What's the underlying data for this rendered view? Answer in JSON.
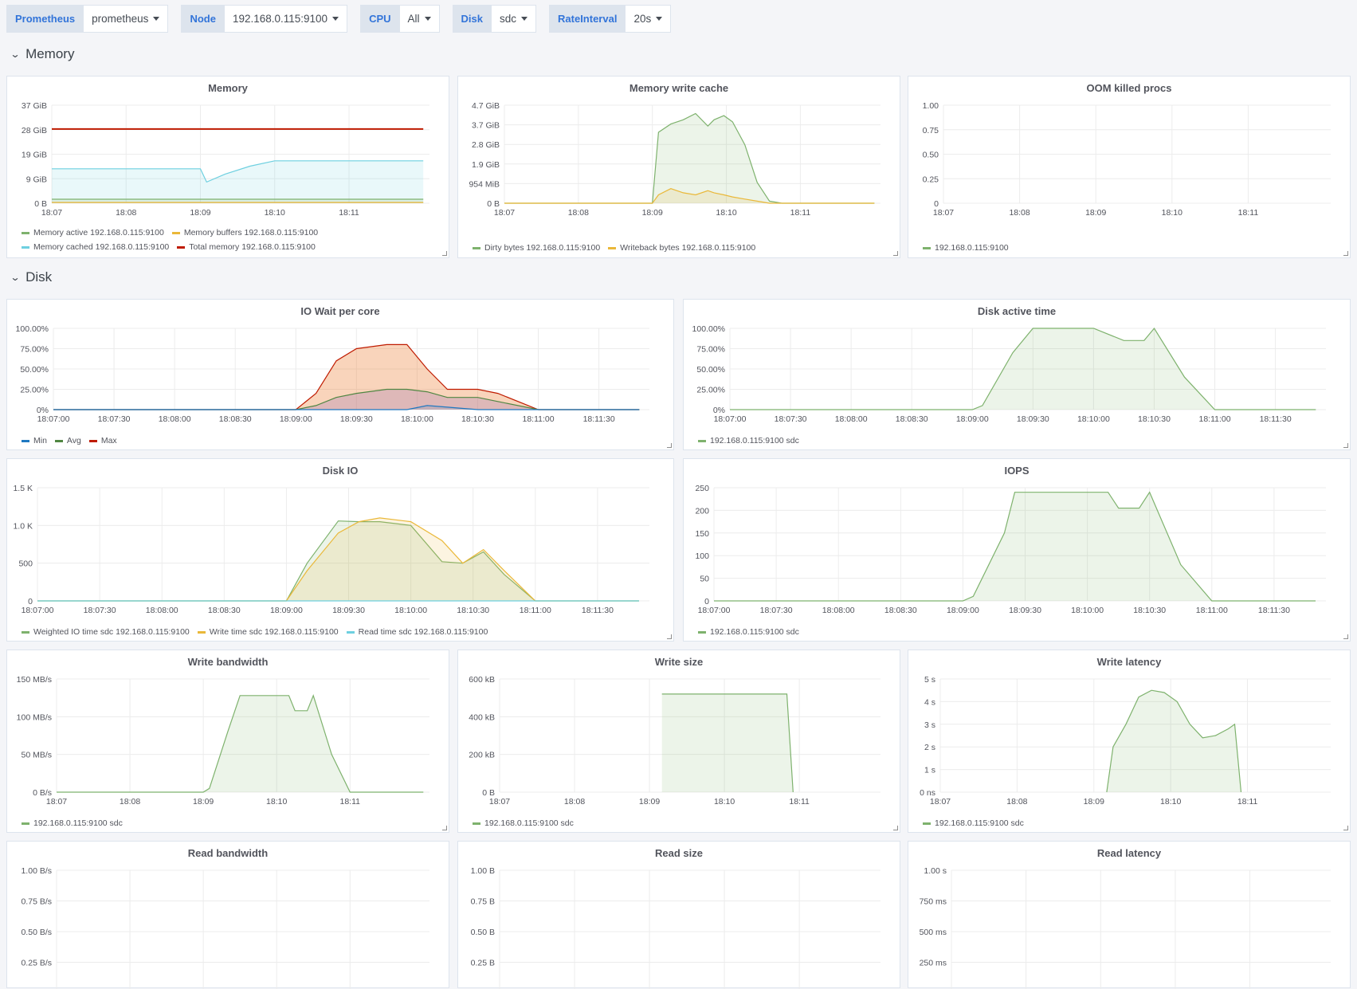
{
  "variables": [
    {
      "label": "Prometheus",
      "value": "prometheus"
    },
    {
      "label": "Node",
      "value": "192.168.0.115:9100"
    },
    {
      "label": "CPU",
      "value": "All"
    },
    {
      "label": "Disk",
      "value": "sdc"
    },
    {
      "label": "RateInterval",
      "value": "20s"
    }
  ],
  "rows": {
    "memory": "Memory",
    "disk": "Disk"
  },
  "panels": {
    "memory": {
      "title": "Memory",
      "yticks": [
        "37 GiB",
        "28 GiB",
        "19 GiB",
        "9 GiB",
        "0 B"
      ],
      "xticks": [
        "18:07",
        "18:08",
        "18:09",
        "18:10",
        "18:11"
      ],
      "legend": [
        [
          {
            "name": "Memory active 192.168.0.115:9100",
            "color": "#7eb26d"
          },
          {
            "name": "Memory buffers 192.168.0.115:9100",
            "color": "#eab839"
          }
        ],
        [
          {
            "name": "Memory cached 192.168.0.115:9100",
            "color": "#6ed0e0"
          },
          {
            "name": "Total memory 192.168.0.115:9100",
            "color": "#bf1b00"
          }
        ]
      ]
    },
    "memory_write_cache": {
      "title": "Memory write cache",
      "yticks": [
        "4.7 GiB",
        "3.7 GiB",
        "2.8 GiB",
        "1.9 GiB",
        "954 MiB",
        "0 B"
      ],
      "xticks": [
        "18:07",
        "18:08",
        "18:09",
        "18:10",
        "18:11"
      ],
      "legend": [
        [
          {
            "name": "Dirty bytes 192.168.0.115:9100",
            "color": "#7eb26d"
          },
          {
            "name": "Writeback bytes 192.168.0.115:9100",
            "color": "#eab839"
          }
        ]
      ]
    },
    "oom": {
      "title": "OOM killed procs",
      "yticks": [
        "1.00",
        "0.75",
        "0.50",
        "0.25",
        "0"
      ],
      "xticks": [
        "18:07",
        "18:08",
        "18:09",
        "18:10",
        "18:11"
      ],
      "legend": [
        [
          {
            "name": "192.168.0.115:9100",
            "color": "#7eb26d"
          }
        ]
      ]
    },
    "io_wait": {
      "title": "IO Wait per core",
      "yticks": [
        "100.00%",
        "75.00%",
        "50.00%",
        "25.00%",
        "0%"
      ],
      "xticks": [
        "18:07:00",
        "18:07:30",
        "18:08:00",
        "18:08:30",
        "18:09:00",
        "18:09:30",
        "18:10:00",
        "18:10:30",
        "18:11:00",
        "18:11:30"
      ],
      "legend": [
        [
          {
            "name": "Min",
            "color": "#1f78c1"
          },
          {
            "name": "Avg",
            "color": "#508642"
          },
          {
            "name": "Max",
            "color": "#bf1b00"
          }
        ]
      ]
    },
    "disk_active": {
      "title": "Disk active time",
      "yticks": [
        "100.00%",
        "75.00%",
        "50.00%",
        "25.00%",
        "0%"
      ],
      "xticks": [
        "18:07:00",
        "18:07:30",
        "18:08:00",
        "18:08:30",
        "18:09:00",
        "18:09:30",
        "18:10:00",
        "18:10:30",
        "18:11:00",
        "18:11:30"
      ],
      "legend": [
        [
          {
            "name": "192.168.0.115:9100 sdc",
            "color": "#7eb26d"
          }
        ]
      ]
    },
    "disk_io": {
      "title": "Disk IO",
      "yticks": [
        "1.5 K",
        "1.0 K",
        "500",
        "0"
      ],
      "xticks": [
        "18:07:00",
        "18:07:30",
        "18:08:00",
        "18:08:30",
        "18:09:00",
        "18:09:30",
        "18:10:00",
        "18:10:30",
        "18:11:00",
        "18:11:30"
      ],
      "legend": [
        [
          {
            "name": "Weighted IO time sdc 192.168.0.115:9100",
            "color": "#7eb26d"
          },
          {
            "name": "Write time sdc 192.168.0.115:9100",
            "color": "#eab839"
          },
          {
            "name": "Read time sdc 192.168.0.115:9100",
            "color": "#6ed0e0"
          }
        ]
      ]
    },
    "iops": {
      "title": "IOPS",
      "yticks": [
        "250",
        "200",
        "150",
        "100",
        "50",
        "0"
      ],
      "xticks": [
        "18:07:00",
        "18:07:30",
        "18:08:00",
        "18:08:30",
        "18:09:00",
        "18:09:30",
        "18:10:00",
        "18:10:30",
        "18:11:00",
        "18:11:30"
      ],
      "legend": [
        [
          {
            "name": "192.168.0.115:9100 sdc",
            "color": "#7eb26d"
          }
        ]
      ]
    },
    "write_bw": {
      "title": "Write bandwidth",
      "yticks": [
        "150 MB/s",
        "100 MB/s",
        "50 MB/s",
        "0 B/s"
      ],
      "xticks": [
        "18:07",
        "18:08",
        "18:09",
        "18:10",
        "18:11"
      ],
      "legend": [
        [
          {
            "name": "192.168.0.115:9100 sdc",
            "color": "#7eb26d"
          }
        ]
      ]
    },
    "write_size": {
      "title": "Write size",
      "yticks": [
        "600 kB",
        "400 kB",
        "200 kB",
        "0 B"
      ],
      "xticks": [
        "18:07",
        "18:08",
        "18:09",
        "18:10",
        "18:11"
      ],
      "legend": [
        [
          {
            "name": "192.168.0.115:9100 sdc",
            "color": "#7eb26d"
          }
        ]
      ]
    },
    "write_latency": {
      "title": "Write latency",
      "yticks": [
        "5 s",
        "4 s",
        "3 s",
        "2 s",
        "1 s",
        "0 ns"
      ],
      "xticks": [
        "18:07",
        "18:08",
        "18:09",
        "18:10",
        "18:11"
      ],
      "legend": [
        [
          {
            "name": "192.168.0.115:9100 sdc",
            "color": "#7eb26d"
          }
        ]
      ]
    },
    "read_bw": {
      "title": "Read bandwidth",
      "yticks": [
        "1.00 B/s",
        "0.75 B/s",
        "0.50 B/s",
        "0.25 B/s"
      ],
      "xticks": [],
      "legend": []
    },
    "read_size": {
      "title": "Read size",
      "yticks": [
        "1.00 B",
        "0.75 B",
        "0.50 B",
        "0.25 B"
      ],
      "xticks": [],
      "legend": []
    },
    "read_latency": {
      "title": "Read latency",
      "yticks": [
        "1.00 s",
        "750 ms",
        "500 ms",
        "250 ms"
      ],
      "xticks": [],
      "legend": []
    }
  },
  "chart_data": [
    {
      "panel": "memory",
      "type": "area",
      "title": "Memory",
      "x": [
        "18:07:00",
        "18:09:00",
        "18:09:05",
        "18:09:20",
        "18:09:40",
        "18:10:00",
        "18:10:30",
        "18:11:00",
        "18:12:00"
      ],
      "series": [
        {
          "name": "Total memory 192.168.0.115:9100",
          "values": [
            28,
            28,
            28,
            28,
            28,
            28,
            28,
            28,
            28
          ]
        },
        {
          "name": "Memory cached 192.168.0.115:9100",
          "values": [
            13,
            13,
            8,
            11,
            14,
            16,
            16,
            16,
            16
          ]
        },
        {
          "name": "Memory active 192.168.0.115:9100",
          "values": [
            1.5,
            1.5,
            1.5,
            1.5,
            1.5,
            1.5,
            1.5,
            1.5,
            1.5
          ]
        },
        {
          "name": "Memory buffers 192.168.0.115:9100",
          "values": [
            0.3,
            0.3,
            0.3,
            0.3,
            0.3,
            0.3,
            0.3,
            0.3,
            0.3
          ]
        }
      ],
      "ylim": [
        0,
        37
      ]
    },
    {
      "panel": "memory_write_cache",
      "type": "area",
      "title": "Memory write cache",
      "x": [
        "18:07:00",
        "18:09:00",
        "18:09:05",
        "18:09:15",
        "18:09:25",
        "18:09:35",
        "18:09:45",
        "18:09:50",
        "18:09:58",
        "18:10:05",
        "18:10:15",
        "18:10:25",
        "18:10:35",
        "18:10:45",
        "18:11:00",
        "18:12:00"
      ],
      "series": [
        {
          "name": "Dirty bytes 192.168.0.115:9100",
          "values": [
            0,
            0,
            3.4,
            3.8,
            4.0,
            4.3,
            3.7,
            4.0,
            4.2,
            3.9,
            2.8,
            1.0,
            0.1,
            0,
            0,
            0
          ]
        },
        {
          "name": "Writeback bytes 192.168.0.115:9100",
          "values": [
            0,
            0,
            0.4,
            0.7,
            0.5,
            0.4,
            0.6,
            0.5,
            0.4,
            0.3,
            0.2,
            0.1,
            0,
            0,
            0,
            0
          ]
        }
      ],
      "ylim": [
        0,
        4.7
      ]
    },
    {
      "panel": "oom",
      "type": "line",
      "title": "OOM killed procs",
      "series": [
        {
          "name": "192.168.0.115:9100",
          "values": []
        }
      ],
      "ylim": [
        0,
        1
      ]
    },
    {
      "panel": "io_wait",
      "type": "area",
      "title": "IO Wait per core",
      "x": [
        "18:07:00",
        "18:09:00",
        "18:09:10",
        "18:09:20",
        "18:09:30",
        "18:09:45",
        "18:09:55",
        "18:10:05",
        "18:10:15",
        "18:10:30",
        "18:10:40",
        "18:11:00",
        "18:11:50"
      ],
      "series": [
        {
          "name": "Max",
          "values": [
            0,
            0,
            20,
            60,
            75,
            80,
            80,
            50,
            25,
            25,
            20,
            0,
            0
          ]
        },
        {
          "name": "Avg",
          "values": [
            0,
            0,
            5,
            15,
            20,
            25,
            25,
            22,
            15,
            15,
            10,
            0,
            0
          ]
        },
        {
          "name": "Min",
          "values": [
            0,
            0,
            0,
            0,
            0,
            0,
            0,
            5,
            3,
            0,
            0,
            0,
            0
          ]
        }
      ],
      "ylim": [
        0,
        100
      ]
    },
    {
      "panel": "disk_active",
      "type": "area",
      "title": "Disk active time",
      "x": [
        "18:07:00",
        "18:09:00",
        "18:09:05",
        "18:09:20",
        "18:09:30",
        "18:10:00",
        "18:10:15",
        "18:10:25",
        "18:10:30",
        "18:10:45",
        "18:11:00",
        "18:11:50"
      ],
      "series": [
        {
          "name": "192.168.0.115:9100 sdc",
          "values": [
            0,
            0,
            5,
            70,
            100,
            100,
            85,
            85,
            100,
            40,
            0,
            0
          ]
        }
      ],
      "ylim": [
        0,
        100
      ]
    },
    {
      "panel": "disk_io",
      "type": "area",
      "title": "Disk IO",
      "x": [
        "18:07:00",
        "18:09:00",
        "18:09:10",
        "18:09:25",
        "18:09:35",
        "18:09:45",
        "18:10:00",
        "18:10:15",
        "18:10:25",
        "18:10:35",
        "18:10:45",
        "18:11:00",
        "18:11:50"
      ],
      "series": [
        {
          "name": "Weighted IO time sdc 192.168.0.115:9100",
          "values": [
            0,
            0,
            500,
            1060,
            1050,
            1050,
            1000,
            520,
            500,
            650,
            350,
            0,
            0
          ]
        },
        {
          "name": "Write time sdc 192.168.0.115:9100",
          "values": [
            0,
            0,
            400,
            900,
            1050,
            1100,
            1050,
            800,
            500,
            680,
            400,
            0,
            0
          ]
        },
        {
          "name": "Read time sdc 192.168.0.115:9100",
          "values": [
            0,
            0,
            0,
            0,
            0,
            0,
            0,
            0,
            0,
            0,
            0,
            0,
            0
          ]
        }
      ],
      "ylim": [
        0,
        1500
      ]
    },
    {
      "panel": "iops",
      "type": "area",
      "title": "IOPS",
      "x": [
        "18:07:00",
        "18:09:00",
        "18:09:05",
        "18:09:20",
        "18:09:25",
        "18:10:10",
        "18:10:15",
        "18:10:25",
        "18:10:30",
        "18:10:45",
        "18:11:00",
        "18:11:50"
      ],
      "series": [
        {
          "name": "192.168.0.115:9100 sdc",
          "values": [
            0,
            0,
            10,
            150,
            240,
            240,
            205,
            205,
            240,
            80,
            0,
            0
          ]
        }
      ],
      "ylim": [
        0,
        250
      ]
    },
    {
      "panel": "write_bw",
      "type": "area",
      "title": "Write bandwidth",
      "x": [
        "18:07:00",
        "18:09:00",
        "18:09:05",
        "18:09:20",
        "18:09:30",
        "18:10:10",
        "18:10:15",
        "18:10:25",
        "18:10:30",
        "18:10:45",
        "18:11:00",
        "18:12:00"
      ],
      "series": [
        {
          "name": "192.168.0.115:9100 sdc",
          "values": [
            0,
            0,
            5,
            80,
            128,
            128,
            108,
            108,
            128,
            50,
            0,
            0
          ]
        }
      ],
      "ylim": [
        0,
        150
      ]
    },
    {
      "panel": "write_size",
      "type": "area",
      "title": "Write size",
      "x": [
        "18:09:10",
        "18:10:50",
        "18:10:55"
      ],
      "series": [
        {
          "name": "192.168.0.115:9100 sdc",
          "values": [
            520,
            520,
            0
          ]
        }
      ],
      "ylim": [
        0,
        600
      ]
    },
    {
      "panel": "write_latency",
      "type": "area",
      "title": "Write latency",
      "x": [
        "18:09:10",
        "18:09:15",
        "18:09:25",
        "18:09:35",
        "18:09:45",
        "18:09:55",
        "18:10:05",
        "18:10:15",
        "18:10:25",
        "18:10:35",
        "18:10:45",
        "18:10:50",
        "18:10:55"
      ],
      "series": [
        {
          "name": "192.168.0.115:9100 sdc",
          "values": [
            0,
            2,
            3,
            4.2,
            4.5,
            4.4,
            4,
            3,
            2.4,
            2.5,
            2.8,
            3,
            0
          ]
        }
      ],
      "ylim": [
        0,
        5
      ]
    },
    {
      "panel": "read_bw",
      "type": "line",
      "title": "Read bandwidth",
      "series": [],
      "ylim": [
        0,
        1
      ]
    },
    {
      "panel": "read_size",
      "type": "line",
      "title": "Read size",
      "series": [],
      "ylim": [
        0,
        1
      ]
    },
    {
      "panel": "read_latency",
      "type": "line",
      "title": "Read latency",
      "series": [],
      "ylim": [
        0,
        1
      ]
    }
  ]
}
